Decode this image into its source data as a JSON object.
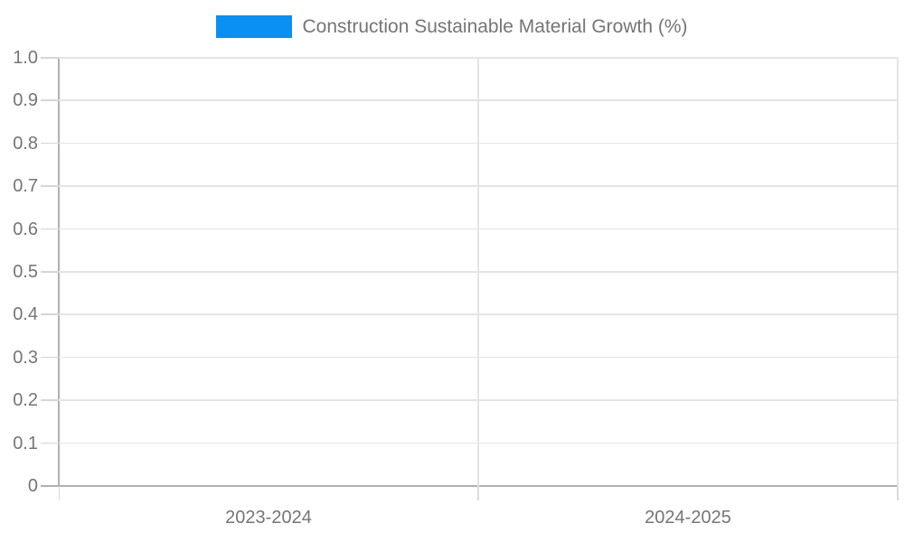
{
  "chart_data": {
    "type": "bar",
    "title": "",
    "categories": [
      "2023-2024",
      "2024-2025"
    ],
    "series": [
      {
        "name": "Construction Sustainable Material Growth (%)",
        "color": "#0a8ff2",
        "values": [
          null,
          null
        ]
      }
    ],
    "ylim": [
      0,
      1.0
    ],
    "yticks": [
      0,
      0.1,
      0.2,
      0.3,
      0.4,
      0.5,
      0.6,
      0.7,
      0.8,
      0.9,
      1.0
    ],
    "ytick_labels": [
      "0",
      "0.1",
      "0.2",
      "0.3",
      "0.4",
      "0.5",
      "0.6",
      "0.7",
      "0.8",
      "0.9",
      "1.0"
    ],
    "grid": true,
    "legend_position": "top-center"
  },
  "colors": {
    "accent_blue": "#0a8ff2",
    "axis": "#b0b0b0",
    "gridline": "#e4e4e4",
    "label_text": "#757575",
    "background": "#ffffff"
  }
}
